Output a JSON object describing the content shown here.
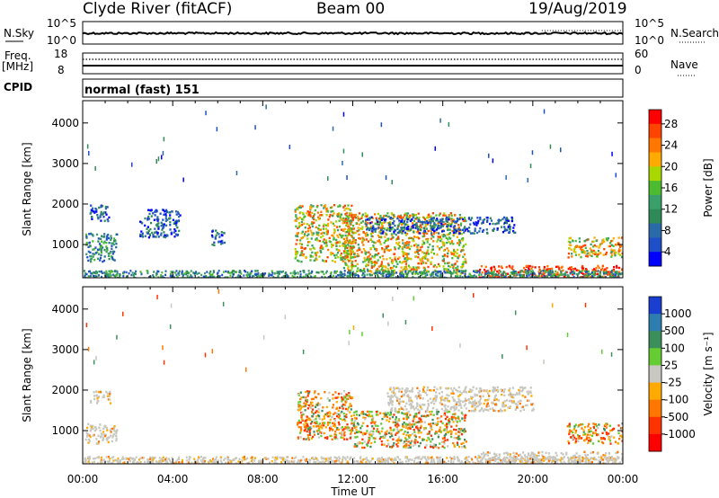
{
  "header": {
    "station": "Clyde River (fitACF)",
    "beam": "Beam 00",
    "date": "19/Aug/2019"
  },
  "strips": {
    "nsky_label": "N.Sky",
    "nsky_ticks": [
      "10^5",
      "10^0"
    ],
    "nsearch_label": "N.Search",
    "nsearch_ticks": [
      "10^5",
      "10^0"
    ],
    "freq_label": "Freq.",
    "freq_unit": "[MHz]",
    "freq_ticks": [
      "18",
      "8"
    ],
    "nave_label": "Nave",
    "nave_ticks": [
      "60",
      "0"
    ],
    "cpid_label": "CPID",
    "cpid_value": "normal (fast) 151"
  },
  "chart_data": [
    {
      "type": "heatmap",
      "name": "power",
      "ylabel": "Slant Range [km]",
      "yticks": [
        1000,
        2000,
        3000,
        4000
      ],
      "ylim": [
        180,
        4550
      ],
      "xlim_hours": [
        0,
        24
      ],
      "colorbar": {
        "label": "Power [dB]",
        "ticks": [
          "28",
          "24",
          "20",
          "16",
          "12",
          "8",
          "4"
        ],
        "colors": [
          "#ff0000",
          "#ff4400",
          "#ff7700",
          "#ffaa00",
          "#a8d800",
          "#4dbb30",
          "#3aa06a",
          "#2e8b57",
          "#2b6aa8",
          "#1e4fc8",
          "#0000ff"
        ]
      },
      "regions": [
        {
          "t": [
            0.1,
            1.5
          ],
          "r": [
            600,
            1300
          ],
          "level": "mid"
        },
        {
          "t": [
            0.3,
            1.2
          ],
          "r": [
            1600,
            2000
          ],
          "level": "low"
        },
        {
          "t": [
            2.5,
            4.3
          ],
          "r": [
            1200,
            1900
          ],
          "level": "low"
        },
        {
          "t": [
            5.7,
            6.3
          ],
          "r": [
            1000,
            1400
          ],
          "level": "low"
        },
        {
          "t": [
            9.4,
            12.0
          ],
          "r": [
            600,
            2000
          ],
          "level": "high"
        },
        {
          "t": [
            11.5,
            17.0
          ],
          "r": [
            300,
            1800
          ],
          "level": "high"
        },
        {
          "t": [
            12.5,
            19.2
          ],
          "r": [
            1300,
            1700
          ],
          "level": "low"
        },
        {
          "t": [
            17.5,
            24.0
          ],
          "r": [
            180,
            500
          ],
          "level": "max"
        },
        {
          "t": [
            21.5,
            24.0
          ],
          "r": [
            700,
            1200
          ],
          "level": "high"
        }
      ]
    },
    {
      "type": "heatmap",
      "name": "velocity",
      "ylabel": "Slant Range [km]",
      "yticks": [
        1000,
        2000,
        3000,
        4000
      ],
      "ylim": [
        180,
        4550
      ],
      "xlabel": "Time UT",
      "xticks": [
        "00:00",
        "04:00",
        "08:00",
        "12:00",
        "16:00",
        "20:00",
        "00:00"
      ],
      "xlim_hours": [
        0,
        24
      ],
      "colorbar": {
        "label": "Velocity [m s⁻¹]",
        "ticks": [
          "1000",
          "500",
          "100",
          "25",
          "-25",
          "-100",
          "-500",
          "-1000"
        ],
        "colors": [
          "#1a3fd0",
          "#2e7db0",
          "#3a8f5a",
          "#66cc33",
          "#c8c8c0",
          "#ffaa00",
          "#ff7700",
          "#ff3300",
          "#ff0000"
        ]
      },
      "regions": [
        {
          "t": [
            0.1,
            1.5
          ],
          "r": [
            700,
            1200
          ],
          "level": "grey"
        },
        {
          "t": [
            0.3,
            1.2
          ],
          "r": [
            1700,
            2000
          ],
          "level": "grey"
        },
        {
          "t": [
            9.5,
            12.0
          ],
          "r": [
            800,
            2000
          ],
          "level": "orange"
        },
        {
          "t": [
            12.0,
            17.0
          ],
          "r": [
            600,
            1500
          ],
          "level": "mixed"
        },
        {
          "t": [
            13.5,
            20.0
          ],
          "r": [
            1500,
            2100
          ],
          "level": "grey"
        },
        {
          "t": [
            17.5,
            24.0
          ],
          "r": [
            200,
            500
          ],
          "level": "grey"
        },
        {
          "t": [
            21.5,
            24.0
          ],
          "r": [
            700,
            1200
          ],
          "level": "orange"
        }
      ]
    }
  ]
}
